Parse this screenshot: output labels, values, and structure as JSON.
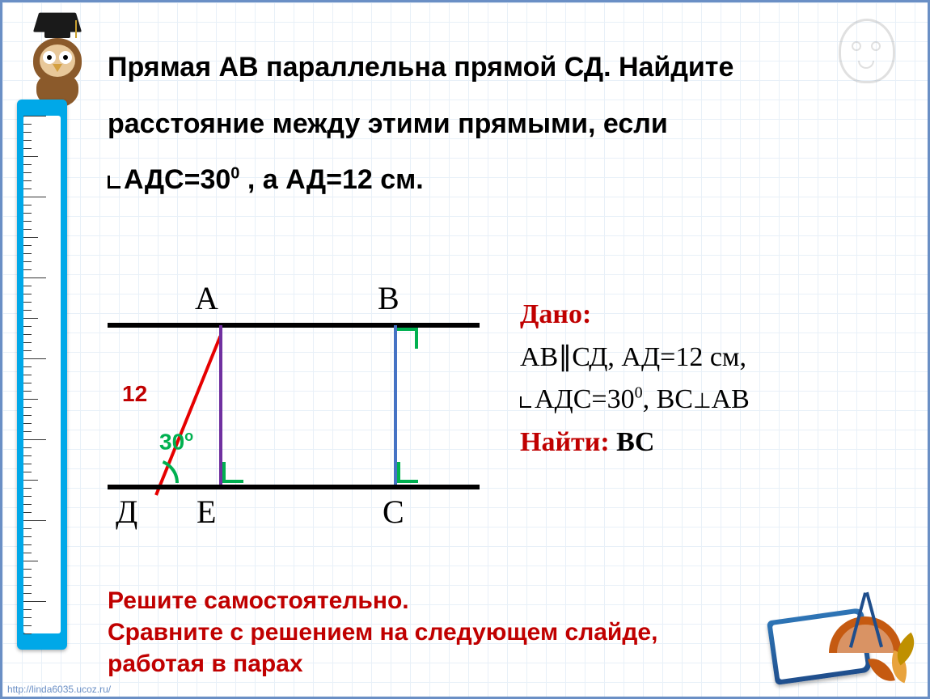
{
  "problem": {
    "line1": "Прямая АВ параллельна  прямой СД. Найдите",
    "line2": "расстояние между этими прямыми, если",
    "line3_pre": "АДС=30",
    "line3_sup": "0",
    "line3_post": " , а АД=12 см."
  },
  "diagram": {
    "labels": {
      "A": "А",
      "B": "В",
      "D": "Д",
      "E": "Е",
      "C": "С"
    },
    "ad_length": "12",
    "angle_label": "30",
    "angle_sup": "о",
    "colors": {
      "line_black": "#000000",
      "line_red": "#e60000",
      "line_purple": "#7030a0",
      "line_blue": "#4472c4",
      "mark_green": "#00b050"
    }
  },
  "given": {
    "header": "Дано:",
    "l1_a": "АВ",
    "l1_par": "∥",
    "l1_b": "СД, АД=12 см,",
    "l2_pre": "АДС=30",
    "l2_sup": "0",
    "l2_post": ", ВС",
    "l2_perp": "⊥",
    "l2_end": "АВ",
    "find_label": "Найти:",
    "find_value": "ВС"
  },
  "instruction": {
    "l1": "Решите самостоятельно.",
    "l2": "Сравните с решением на следующем слайде, работая в парах"
  },
  "footer_url": "http://linda6035.ucoz.ru/",
  "style": {
    "grid_color": "#e8f0f8",
    "border_color": "#6a8fc5",
    "ruler_color": "#00a8e8",
    "red_accent": "#c00000",
    "green_accent": "#00b050",
    "text_color": "#000000",
    "problem_fontsize": 34,
    "given_fontsize": 34,
    "instruction_fontsize": 30,
    "diagram_label_fontsize": 40
  }
}
